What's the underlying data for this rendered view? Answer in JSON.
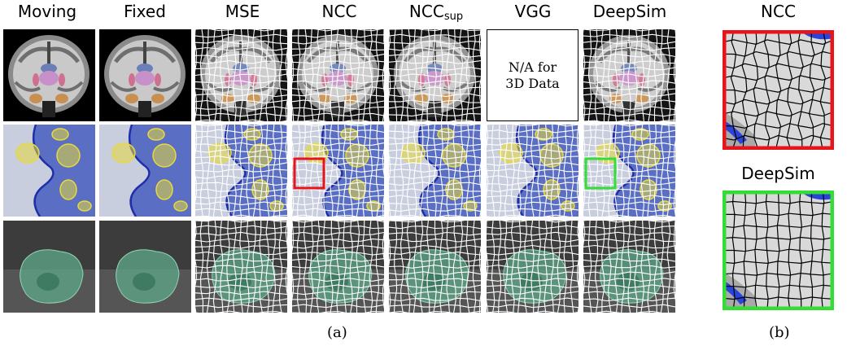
{
  "columns": {
    "moving": "Moving",
    "fixed": "Fixed",
    "mse": "MSE",
    "ncc": "NCC",
    "ncc_sup_base": "NCC",
    "ncc_sup_sub": "sup",
    "vgg": "VGG",
    "deepsim": "DeepSim"
  },
  "na_tile": {
    "line1": "N/A for",
    "line2": "3D Data"
  },
  "panel_b": {
    "ncc_title": "NCC",
    "deepsim_title": "DeepSim"
  },
  "captions": {
    "a": "(a)",
    "b": "(b)"
  },
  "colors": {
    "ncc_highlight": "#e8141a",
    "deepsim_highlight": "#33dd33",
    "tissue_blue": "#5a6fc4",
    "nucleus_yellow": "#e8d93a",
    "cell_green": "#5fa88a"
  }
}
